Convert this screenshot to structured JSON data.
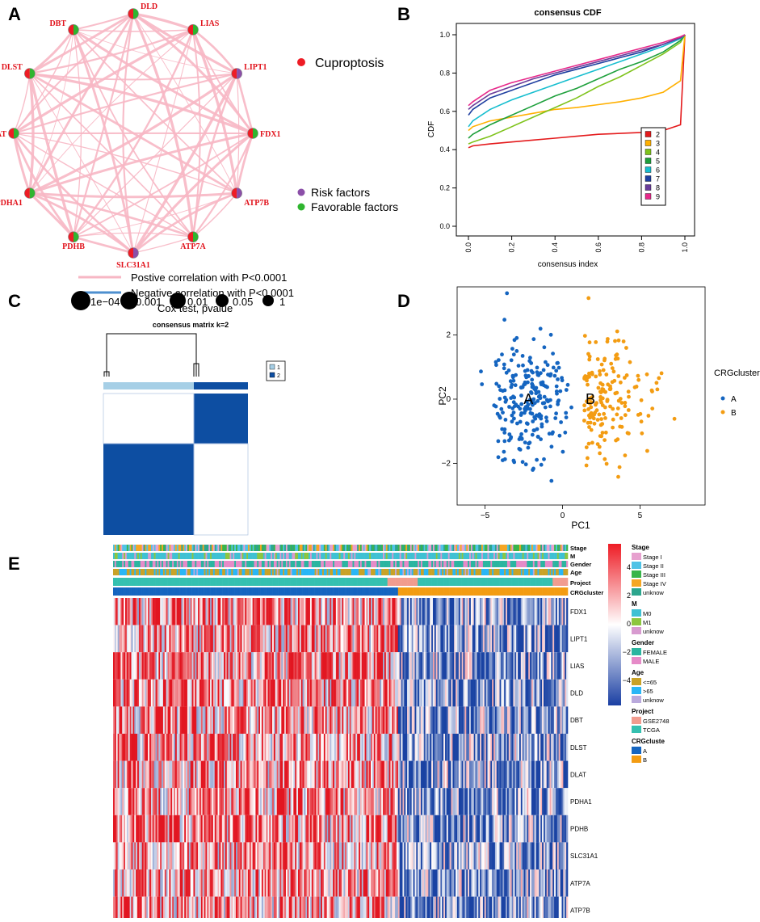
{
  "panel_labels": {
    "a": "A",
    "b": "B",
    "c": "C",
    "d": "D",
    "e": "E"
  },
  "chart_data": [
    {
      "panel": "A",
      "type": "network",
      "nodes": [
        {
          "name": "DLD",
          "left": "red",
          "right": "green"
        },
        {
          "name": "LIAS",
          "left": "red",
          "right": "green"
        },
        {
          "name": "LIPT1",
          "left": "red",
          "right": "purple"
        },
        {
          "name": "FDX1",
          "left": "red",
          "right": "green"
        },
        {
          "name": "ATP7B",
          "left": "red",
          "right": "purple"
        },
        {
          "name": "ATP7A",
          "left": "red",
          "right": "green"
        },
        {
          "name": "SLC31A1",
          "left": "red",
          "right": "purple"
        },
        {
          "name": "PDHB",
          "left": "red",
          "right": "green"
        },
        {
          "name": "PDHA1",
          "left": "red",
          "right": "green"
        },
        {
          "name": "DLAT",
          "left": "red",
          "right": "green"
        },
        {
          "name": "DLST",
          "left": "red",
          "right": "green"
        },
        {
          "name": "DBT",
          "left": "red",
          "right": "green"
        }
      ],
      "legend": {
        "cuproptosis": "Cuproptosis",
        "risk": "Risk factors",
        "favorable": "Favorable factors",
        "pos_corr": "Postive correlation with P<0.0001",
        "neg_corr": "Negative correlation with P<0.0001",
        "cox_title": "Cox test, pvalue",
        "cox_sizes": [
          "1e−04",
          "0.001",
          "0.01",
          "0.05",
          "1"
        ]
      },
      "colors": {
        "red": "#ee1c25",
        "green": "#2fb52f",
        "purple": "#8b4fa8",
        "edge": "#f7b7c4",
        "neg_edge": "#4d8fcf"
      }
    },
    {
      "panel": "B",
      "type": "line",
      "title": "consensus CDF",
      "xlabel": "consensus index",
      "ylabel": "CDF",
      "xlim": [
        0,
        1
      ],
      "ylim": [
        0,
        1
      ],
      "xticks": [
        "0.0",
        "0.2",
        "0.4",
        "0.6",
        "0.8",
        "1.0"
      ],
      "yticks": [
        "0.0",
        "0.2",
        "0.4",
        "0.6",
        "0.8",
        "1.0"
      ],
      "x": [
        0,
        0.02,
        0.1,
        0.2,
        0.3,
        0.4,
        0.5,
        0.6,
        0.7,
        0.8,
        0.9,
        0.98,
        1
      ],
      "series": [
        {
          "name": "2",
          "color": "#e41a1c",
          "values": [
            0.41,
            0.42,
            0.43,
            0.44,
            0.45,
            0.46,
            0.47,
            0.48,
            0.485,
            0.49,
            0.5,
            0.53,
            1.0
          ]
        },
        {
          "name": "3",
          "color": "#ffb000",
          "values": [
            0.5,
            0.52,
            0.55,
            0.57,
            0.59,
            0.61,
            0.62,
            0.635,
            0.65,
            0.67,
            0.7,
            0.76,
            1.0
          ]
        },
        {
          "name": "4",
          "color": "#7fc31c",
          "values": [
            0.43,
            0.44,
            0.47,
            0.52,
            0.57,
            0.62,
            0.67,
            0.73,
            0.78,
            0.84,
            0.9,
            0.96,
            1.0
          ]
        },
        {
          "name": "5",
          "color": "#1ea03c",
          "values": [
            0.46,
            0.48,
            0.53,
            0.58,
            0.63,
            0.68,
            0.72,
            0.77,
            0.82,
            0.86,
            0.91,
            0.97,
            1.0
          ]
        },
        {
          "name": "6",
          "color": "#17becf",
          "values": [
            0.52,
            0.55,
            0.61,
            0.66,
            0.7,
            0.74,
            0.78,
            0.82,
            0.86,
            0.9,
            0.94,
            0.98,
            1.0
          ]
        },
        {
          "name": "7",
          "color": "#1f3fa0",
          "values": [
            0.58,
            0.61,
            0.67,
            0.71,
            0.75,
            0.79,
            0.82,
            0.85,
            0.88,
            0.91,
            0.95,
            0.985,
            1.0
          ]
        },
        {
          "name": "8",
          "color": "#6a3d9a",
          "values": [
            0.61,
            0.63,
            0.69,
            0.73,
            0.77,
            0.8,
            0.83,
            0.86,
            0.89,
            0.92,
            0.95,
            0.985,
            1.0
          ]
        },
        {
          "name": "9",
          "color": "#e7298a",
          "values": [
            0.63,
            0.65,
            0.71,
            0.75,
            0.78,
            0.81,
            0.84,
            0.87,
            0.9,
            0.93,
            0.96,
            0.99,
            1.0
          ]
        }
      ]
    },
    {
      "panel": "C",
      "type": "heatmap",
      "title": "consensus matrix k=2",
      "legend": [
        "1",
        "2"
      ],
      "colors": {
        "1": "#a6cfe6",
        "2": "#0d4ea2"
      },
      "cluster_sizes": {
        "1": 0.58,
        "2": 0.42
      }
    },
    {
      "panel": "D",
      "type": "scatter",
      "xlabel": "PC1",
      "ylabel": "PC2",
      "xticks": [
        -5,
        0,
        5
      ],
      "yticks": [
        -2,
        0,
        2
      ],
      "xlim": [
        -6.8,
        9.2
      ],
      "ylim": [
        -3.3,
        3.5
      ],
      "legend_title": "CRGcluster",
      "groups": [
        {
          "name": "A",
          "color": "#1565c0",
          "center": [
            -2.2,
            0.0
          ],
          "label": "A"
        },
        {
          "name": "B",
          "color": "#f39c12",
          "center": [
            2.3,
            0.0
          ],
          "label": "B"
        }
      ]
    },
    {
      "panel": "E",
      "type": "heatmap",
      "genes": [
        "FDX1",
        "LIPT1",
        "LIAS",
        "DLD",
        "DBT",
        "DLST",
        "DLAT",
        "PDHA1",
        "PDHB",
        "SLC31A1",
        "ATP7A",
        "ATP7B"
      ],
      "annotation_tracks": [
        "Stage",
        "M",
        "Gender",
        "Age",
        "Project",
        "CRGcluster"
      ],
      "colorbar_ticks": [
        "4",
        "2",
        "0",
        "−2",
        "−4"
      ],
      "legend_groups": [
        {
          "title": "Stage",
          "items": [
            {
              "label": "Stage I",
              "color": "#e7a1cf"
            },
            {
              "label": "Stage II",
              "color": "#4fc3e6"
            },
            {
              "label": "Stage III",
              "color": "#39b54a"
            },
            {
              "label": "Stage IV",
              "color": "#f5a623"
            },
            {
              "label": "unknow",
              "color": "#2ca58d"
            }
          ]
        },
        {
          "title": "M",
          "items": [
            {
              "label": "M0",
              "color": "#3fc1d3"
            },
            {
              "label": "M1",
              "color": "#8dc63f"
            },
            {
              "label": "unknow",
              "color": "#d89bd0"
            }
          ]
        },
        {
          "title": "Gender",
          "items": [
            {
              "label": "FEMALE",
              "color": "#2bb5a0"
            },
            {
              "label": "MALE",
              "color": "#e68bc8"
            }
          ]
        },
        {
          "title": "Age",
          "items": [
            {
              "label": "<=65",
              "color": "#c9a227"
            },
            {
              "label": ">65",
              "color": "#29b6f6"
            },
            {
              "label": "unknow",
              "color": "#b9a9dc"
            }
          ]
        },
        {
          "title": "Project",
          "items": [
            {
              "label": "GSE2748",
              "color": "#f19c8f"
            },
            {
              "label": "TCGA",
              "color": "#35c0b0"
            }
          ]
        },
        {
          "title": "CRGcluste",
          "items": [
            {
              "label": "A",
              "color": "#1565c0"
            },
            {
              "label": "B",
              "color": "#f39c12"
            }
          ]
        }
      ]
    }
  ]
}
